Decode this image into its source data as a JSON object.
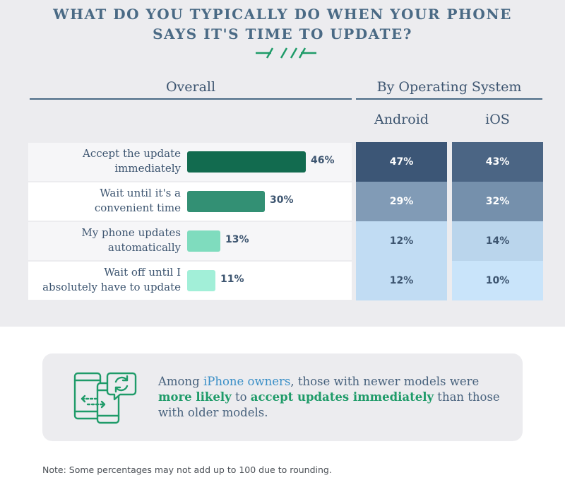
{
  "title_line1": "WHAT DO YOU TYPICALLY DO WHEN YOUR PHONE",
  "title_line2": "SAYS IT'S TIME TO UPDATE?",
  "overall_heading": "Overall",
  "os_heading": "By Operating System",
  "android_label": "Android",
  "ios_label": "iOS",
  "colors": {
    "title": "#4a6a85",
    "bar_shades": [
      "#126b4f",
      "#339074",
      "#7fdcbe",
      "#a2efd8"
    ],
    "heat_low": "#c9e4fa",
    "heat_high": "#3c5676"
  },
  "chart_data": [
    {
      "type": "bar",
      "orientation": "horizontal",
      "title": "Overall",
      "categories": [
        [
          "Accept the update",
          "immediately"
        ],
        [
          "Wait until it's a",
          "convenient time"
        ],
        [
          "My phone updates",
          "automatically"
        ],
        [
          "Wait off until I",
          "absolutely have to update"
        ]
      ],
      "values": [
        46,
        30,
        13,
        11
      ],
      "value_labels": [
        "46%",
        "30%",
        "13%",
        "11%"
      ],
      "unit": "%"
    },
    {
      "type": "heatmap",
      "title": "By Operating System",
      "columns": [
        "Android",
        "iOS"
      ],
      "values": [
        [
          47,
          43
        ],
        [
          29,
          32
        ],
        [
          12,
          14
        ],
        [
          12,
          10
        ]
      ],
      "value_labels": [
        [
          "47%",
          "43%"
        ],
        [
          "29%",
          "32%"
        ],
        [
          "12%",
          "14%"
        ],
        [
          "12%",
          "10%"
        ]
      ],
      "unit": "%"
    }
  ],
  "callout": {
    "p1": "Among ",
    "h1": "iPhone owners",
    "p2": ", those with newer models were ",
    "h2": "more likely",
    "p3": " to ",
    "h3": "accept updates immediately",
    "p4": " than those with older models."
  },
  "footnote": "Note: Some percentages may not add up to 100 due to rounding."
}
